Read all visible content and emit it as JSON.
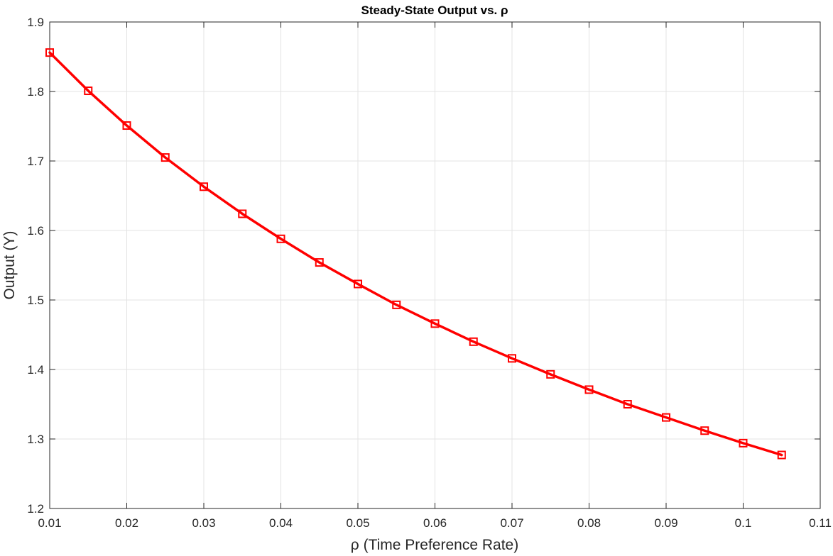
{
  "chart_data": {
    "type": "line",
    "title": "Steady-State  Output  vs.  ρ",
    "xlabel": "ρ  (Time  Preference  Rate)",
    "ylabel": "Output (Y)",
    "xlim": [
      0.01,
      0.11
    ],
    "ylim": [
      1.2,
      1.9
    ],
    "xticks": [
      "0.01",
      "0.02",
      "0.03",
      "0.04",
      "0.05",
      "0.06",
      "0.07",
      "0.08",
      "0.09",
      "0.1",
      "0.11"
    ],
    "yticks": [
      "1.2",
      "1.3",
      "1.4",
      "1.5",
      "1.6",
      "1.7",
      "1.8",
      "1.9"
    ],
    "grid": true,
    "marker": "square",
    "color": "#ff0000",
    "x": [
      0.01,
      0.015,
      0.02,
      0.025,
      0.03,
      0.035,
      0.04,
      0.045,
      0.05,
      0.055,
      0.06,
      0.065,
      0.07,
      0.075,
      0.08,
      0.085,
      0.09,
      0.095,
      0.1,
      0.105
    ],
    "series": [
      {
        "values": [
          1.856,
          1.801,
          1.751,
          1.705,
          1.663,
          1.624,
          1.588,
          1.554,
          1.523,
          1.493,
          1.466,
          1.44,
          1.416,
          1.393,
          1.371,
          1.35,
          1.331,
          1.312,
          1.294,
          1.277
        ]
      }
    ]
  }
}
